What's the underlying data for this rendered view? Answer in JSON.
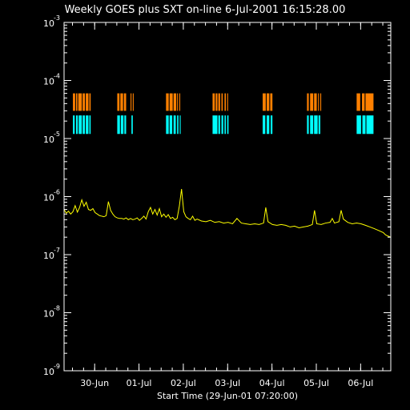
{
  "chart_data": {
    "type": "line",
    "title": "Weekly GOES plus SXT on-line  6-Jul-2001 16:15:28.00",
    "xlabel": "Start Time (29-Jun-01 07:20:00)",
    "ylabel": "",
    "yscale": "log",
    "ylim": [
      1e-09,
      0.001
    ],
    "xlim_days": [
      0,
      7.37
    ],
    "y_tick_labels": [
      {
        "value": 0.001,
        "base": "10",
        "exp": "-3"
      },
      {
        "value": 0.0001,
        "base": "10",
        "exp": "-4"
      },
      {
        "value": 1e-05,
        "base": "10",
        "exp": "-5"
      },
      {
        "value": 1e-06,
        "base": "10",
        "exp": "-6"
      },
      {
        "value": 1e-07,
        "base": "10",
        "exp": "-7"
      },
      {
        "value": 1e-08,
        "base": "10",
        "exp": "-8"
      },
      {
        "value": 1e-09,
        "base": "10",
        "exp": "-9"
      }
    ],
    "x_tick_labels": [
      {
        "label": "30-Jun",
        "day": 0.69
      },
      {
        "label": "01-Jul",
        "day": 1.69
      },
      {
        "label": "02-Jul",
        "day": 2.69
      },
      {
        "label": "03-Jul",
        "day": 3.69
      },
      {
        "label": "04-Jul",
        "day": 4.69
      },
      {
        "label": "05-Jul",
        "day": 5.69
      },
      {
        "label": "06-Jul",
        "day": 6.69
      }
    ],
    "colors": {
      "background": "#000000",
      "axes": "#ffffff",
      "goes_flux": "#ffff00",
      "sxt_upper": "#ff8000",
      "sxt_lower": "#00ffff"
    },
    "series": [
      {
        "key": "goes_flux",
        "color": "#ffff00",
        "points": [
          [
            0.0,
            6e-07
          ],
          [
            0.05,
            5.2e-07
          ],
          [
            0.1,
            5.6e-07
          ],
          [
            0.15,
            5e-07
          ],
          [
            0.2,
            5.5e-07
          ],
          [
            0.25,
            7e-07
          ],
          [
            0.3,
            5.4e-07
          ],
          [
            0.35,
            6.5e-07
          ],
          [
            0.4,
            8.8e-07
          ],
          [
            0.45,
            6.8e-07
          ],
          [
            0.5,
            8e-07
          ],
          [
            0.55,
            6e-07
          ],
          [
            0.6,
            5.8e-07
          ],
          [
            0.65,
            6.2e-07
          ],
          [
            0.7,
            5.3e-07
          ],
          [
            0.75,
            5e-07
          ],
          [
            0.8,
            4.7e-07
          ],
          [
            0.85,
            4.6e-07
          ],
          [
            0.9,
            4.5e-07
          ],
          [
            0.95,
            4.7e-07
          ],
          [
            1.0,
            8.2e-07
          ],
          [
            1.05,
            5.8e-07
          ],
          [
            1.1,
            5e-07
          ],
          [
            1.15,
            4.5e-07
          ],
          [
            1.2,
            4.3e-07
          ],
          [
            1.25,
            4.2e-07
          ],
          [
            1.3,
            4.2e-07
          ],
          [
            1.35,
            4.1e-07
          ],
          [
            1.4,
            4.3e-07
          ],
          [
            1.45,
            4e-07
          ],
          [
            1.5,
            4.2e-07
          ],
          [
            1.55,
            4e-07
          ],
          [
            1.6,
            4.1e-07
          ],
          [
            1.65,
            4.3e-07
          ],
          [
            1.7,
            3.9e-07
          ],
          [
            1.75,
            4.2e-07
          ],
          [
            1.8,
            4.6e-07
          ],
          [
            1.85,
            4.1e-07
          ],
          [
            1.9,
            5.5e-07
          ],
          [
            1.95,
            6.5e-07
          ],
          [
            2.0,
            5e-07
          ],
          [
            2.05,
            6e-07
          ],
          [
            2.1,
            4.8e-07
          ],
          [
            2.15,
            6.2e-07
          ],
          [
            2.2,
            4.5e-07
          ],
          [
            2.25,
            5e-07
          ],
          [
            2.3,
            4.4e-07
          ],
          [
            2.35,
            4.9e-07
          ],
          [
            2.4,
            4.2e-07
          ],
          [
            2.45,
            4.4e-07
          ],
          [
            2.5,
            4e-07
          ],
          [
            2.55,
            4.2e-07
          ],
          [
            2.6,
            6.8e-07
          ],
          [
            2.65,
            1.35e-06
          ],
          [
            2.7,
            5.5e-07
          ],
          [
            2.75,
            4.5e-07
          ],
          [
            2.8,
            4.2e-07
          ],
          [
            2.85,
            4e-07
          ],
          [
            2.9,
            4.6e-07
          ],
          [
            2.95,
            3.9e-07
          ],
          [
            3.0,
            4.1e-07
          ],
          [
            3.1,
            3.8e-07
          ],
          [
            3.2,
            3.7e-07
          ],
          [
            3.3,
            3.9e-07
          ],
          [
            3.4,
            3.6e-07
          ],
          [
            3.5,
            3.7e-07
          ],
          [
            3.6,
            3.5e-07
          ],
          [
            3.7,
            3.6e-07
          ],
          [
            3.8,
            3.4e-07
          ],
          [
            3.9,
            4.2e-07
          ],
          [
            4.0,
            3.5e-07
          ],
          [
            4.1,
            3.4e-07
          ],
          [
            4.2,
            3.3e-07
          ],
          [
            4.3,
            3.4e-07
          ],
          [
            4.4,
            3.3e-07
          ],
          [
            4.5,
            3.5e-07
          ],
          [
            4.55,
            6.5e-07
          ],
          [
            4.6,
            3.7e-07
          ],
          [
            4.7,
            3.3e-07
          ],
          [
            4.8,
            3.2e-07
          ],
          [
            4.9,
            3.3e-07
          ],
          [
            5.0,
            3.2e-07
          ],
          [
            5.1,
            3e-07
          ],
          [
            5.2,
            3.1e-07
          ],
          [
            5.3,
            2.9e-07
          ],
          [
            5.4,
            3e-07
          ],
          [
            5.5,
            3.1e-07
          ],
          [
            5.6,
            3.3e-07
          ],
          [
            5.65,
            5.8e-07
          ],
          [
            5.7,
            3.4e-07
          ],
          [
            5.8,
            3.3e-07
          ],
          [
            5.9,
            3.5e-07
          ],
          [
            6.0,
            3.6e-07
          ],
          [
            6.05,
            4.2e-07
          ],
          [
            6.1,
            3.5e-07
          ],
          [
            6.2,
            3.7e-07
          ],
          [
            6.25,
            5.8e-07
          ],
          [
            6.3,
            4.1e-07
          ],
          [
            6.4,
            3.6e-07
          ],
          [
            6.5,
            3.4e-07
          ],
          [
            6.6,
            3.5e-07
          ],
          [
            6.7,
            3.4e-07
          ],
          [
            6.8,
            3.2e-07
          ],
          [
            6.9,
            3e-07
          ],
          [
            7.0,
            2.8e-07
          ],
          [
            7.1,
            2.6e-07
          ],
          [
            7.2,
            2.4e-07
          ],
          [
            7.25,
            2.2e-07
          ],
          [
            7.3,
            2.1e-07
          ],
          [
            7.37,
            2e-07
          ]
        ]
      }
    ],
    "coverage_bands": [
      {
        "key": "sxt_upper",
        "color": "#ff8000",
        "y_low": 3e-05,
        "y_high": 6e-05,
        "intervals": [
          [
            0.2,
            0.25
          ],
          [
            0.27,
            0.3
          ],
          [
            0.32,
            0.4
          ],
          [
            0.42,
            0.47
          ],
          [
            0.49,
            0.55
          ],
          [
            0.57,
            0.6
          ],
          [
            1.2,
            1.25
          ],
          [
            1.27,
            1.33
          ],
          [
            1.35,
            1.4
          ],
          [
            1.5,
            1.52
          ],
          [
            1.55,
            1.57
          ],
          [
            2.3,
            2.36
          ],
          [
            2.38,
            2.45
          ],
          [
            2.47,
            2.53
          ],
          [
            2.55,
            2.57
          ],
          [
            2.6,
            2.62
          ],
          [
            3.35,
            3.4
          ],
          [
            3.42,
            3.46
          ],
          [
            3.48,
            3.52
          ],
          [
            3.55,
            3.58
          ],
          [
            3.62,
            3.65
          ],
          [
            3.68,
            3.7
          ],
          [
            4.48,
            4.55
          ],
          [
            4.57,
            4.63
          ],
          [
            4.65,
            4.7
          ],
          [
            5.48,
            5.52
          ],
          [
            5.55,
            5.62
          ],
          [
            5.64,
            5.7
          ],
          [
            5.73,
            5.75
          ],
          [
            5.78,
            5.8
          ],
          [
            6.6,
            6.68
          ],
          [
            6.72,
            6.78
          ],
          [
            6.8,
            6.98
          ]
        ]
      },
      {
        "key": "sxt_lower",
        "color": "#00ffff",
        "y_low": 1.2e-05,
        "y_high": 2.5e-05,
        "intervals": [
          [
            0.2,
            0.24
          ],
          [
            0.27,
            0.31
          ],
          [
            0.33,
            0.4
          ],
          [
            0.42,
            0.47
          ],
          [
            0.49,
            0.55
          ],
          [
            0.57,
            0.6
          ],
          [
            1.2,
            1.26
          ],
          [
            1.28,
            1.34
          ],
          [
            1.36,
            1.4
          ],
          [
            1.52,
            1.55
          ],
          [
            2.3,
            2.36
          ],
          [
            2.38,
            2.44
          ],
          [
            2.47,
            2.52
          ],
          [
            2.55,
            2.58
          ],
          [
            2.61,
            2.63
          ],
          [
            3.35,
            3.46
          ],
          [
            3.48,
            3.52
          ],
          [
            3.55,
            3.59
          ],
          [
            3.62,
            3.65
          ],
          [
            3.68,
            3.71
          ],
          [
            4.48,
            4.54
          ],
          [
            4.57,
            4.63
          ],
          [
            4.66,
            4.7
          ],
          [
            5.48,
            5.52
          ],
          [
            5.55,
            5.62
          ],
          [
            5.64,
            5.72
          ],
          [
            5.74,
            5.78
          ],
          [
            6.6,
            6.7
          ],
          [
            6.73,
            6.8
          ],
          [
            6.82,
            6.98
          ]
        ]
      }
    ]
  }
}
